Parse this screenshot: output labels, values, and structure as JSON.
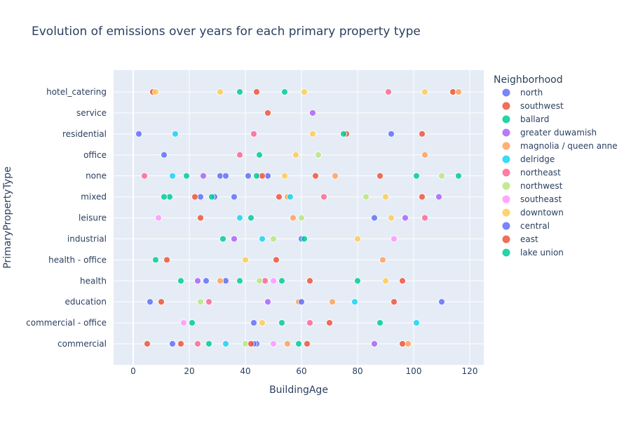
{
  "chart_data": {
    "type": "scatter",
    "title": "Evolution of emissions over years for each primary property type",
    "xlabel": "BuildingAge",
    "ylabel": "PrimaryPropertyType",
    "xlim": [
      -7,
      125
    ],
    "xticks": [
      0,
      20,
      40,
      60,
      80,
      100,
      120
    ],
    "categories": [
      "commercial",
      "commercial - office",
      "education",
      "health",
      "health - office",
      "industrial",
      "leisure",
      "mixed",
      "none",
      "office",
      "residential",
      "service",
      "hotel_catering"
    ],
    "grid": true,
    "legend": {
      "title": "Neighborhood",
      "placement": "right"
    },
    "series": [
      {
        "name": "north",
        "color": "#636efa",
        "points": [
          [
            14,
            "commercial"
          ],
          [
            44,
            "commercial"
          ],
          [
            6,
            "education"
          ],
          [
            33,
            "health"
          ],
          [
            31,
            "none"
          ],
          [
            48,
            "none"
          ],
          [
            11,
            "office"
          ],
          [
            2,
            "residential"
          ],
          [
            29,
            "mixed"
          ],
          [
            92,
            "residential"
          ],
          [
            60,
            "industrial"
          ],
          [
            86,
            "leisure"
          ]
        ]
      },
      {
        "name": "southwest",
        "color": "#ef553b",
        "points": [
          [
            5,
            "commercial"
          ],
          [
            17,
            "commercial"
          ],
          [
            10,
            "education"
          ],
          [
            12,
            "health - office"
          ],
          [
            63,
            "health"
          ],
          [
            52,
            "mixed"
          ],
          [
            65,
            "none"
          ],
          [
            88,
            "none"
          ],
          [
            114,
            "hotel_catering"
          ],
          [
            7,
            "hotel_catering"
          ],
          [
            70,
            "commercial - office"
          ],
          [
            103,
            "residential"
          ],
          [
            48,
            "service"
          ],
          [
            24,
            "leisure"
          ]
        ]
      },
      {
        "name": "ballard",
        "color": "#00cc96",
        "points": [
          [
            27,
            "commercial"
          ],
          [
            59,
            "commercial"
          ],
          [
            17,
            "health"
          ],
          [
            53,
            "health"
          ],
          [
            8,
            "health - office"
          ],
          [
            13,
            "mixed"
          ],
          [
            28,
            "mixed"
          ],
          [
            19,
            "none"
          ],
          [
            116,
            "none"
          ],
          [
            54,
            "hotel_catering"
          ],
          [
            21,
            "commercial - office"
          ],
          [
            88,
            "commercial - office"
          ],
          [
            45,
            "office"
          ],
          [
            32,
            "industrial"
          ]
        ]
      },
      {
        "name": "greater duwamish",
        "color": "#ab63fa",
        "points": [
          [
            23,
            "health"
          ],
          [
            64,
            "service"
          ],
          [
            25,
            "none"
          ],
          [
            36,
            "industrial"
          ],
          [
            97,
            "leisure"
          ],
          [
            109,
            "mixed"
          ],
          [
            48,
            "education"
          ],
          [
            86,
            "commercial"
          ]
        ]
      },
      {
        "name": "magnolia / queen anne",
        "color": "#ffa15a",
        "points": [
          [
            55,
            "commercial"
          ],
          [
            71,
            "education"
          ],
          [
            31,
            "health"
          ],
          [
            89,
            "health - office"
          ],
          [
            98,
            "commercial"
          ],
          [
            116,
            "hotel_catering"
          ],
          [
            55,
            "mixed"
          ],
          [
            72,
            "none"
          ],
          [
            104,
            "office"
          ],
          [
            57,
            "leisure"
          ],
          [
            59,
            "education"
          ]
        ]
      },
      {
        "name": "delridge",
        "color": "#19d3f3",
        "points": [
          [
            33,
            "commercial"
          ],
          [
            14,
            "none"
          ],
          [
            46,
            "industrial"
          ],
          [
            38,
            "leisure"
          ],
          [
            101,
            "commercial - office"
          ],
          [
            79,
            "education"
          ],
          [
            56,
            "mixed"
          ],
          [
            15,
            "residential"
          ]
        ]
      },
      {
        "name": "northeast",
        "color": "#ff6692",
        "points": [
          [
            23,
            "commercial"
          ],
          [
            27,
            "education"
          ],
          [
            47,
            "health"
          ],
          [
            63,
            "commercial - office"
          ],
          [
            38,
            "office"
          ],
          [
            68,
            "mixed"
          ],
          [
            4,
            "none"
          ],
          [
            91,
            "hotel_catering"
          ],
          [
            43,
            "residential"
          ],
          [
            104,
            "leisure"
          ]
        ]
      },
      {
        "name": "northwest",
        "color": "#b6e880",
        "points": [
          [
            40,
            "commercial"
          ],
          [
            45,
            "health"
          ],
          [
            83,
            "mixed"
          ],
          [
            60,
            "leisure"
          ],
          [
            66,
            "office"
          ],
          [
            50,
            "industrial"
          ],
          [
            24,
            "education"
          ],
          [
            110,
            "none"
          ]
        ]
      },
      {
        "name": "southeast",
        "color": "#ff97ff",
        "points": [
          [
            50,
            "commercial"
          ],
          [
            50,
            "health"
          ],
          [
            45,
            "none"
          ],
          [
            18,
            "commercial - office"
          ],
          [
            93,
            "industrial"
          ],
          [
            9,
            "leisure"
          ]
        ]
      },
      {
        "name": "downtown",
        "color": "#fecb52",
        "points": [
          [
            90,
            "health"
          ],
          [
            104,
            "hotel_catering"
          ],
          [
            8,
            "hotel_catering"
          ],
          [
            61,
            "hotel_catering"
          ],
          [
            31,
            "hotel_catering"
          ],
          [
            90,
            "mixed"
          ],
          [
            54,
            "none"
          ],
          [
            58,
            "office"
          ],
          [
            64,
            "residential"
          ],
          [
            40,
            "health - office"
          ],
          [
            92,
            "leisure"
          ],
          [
            46,
            "commercial - office"
          ],
          [
            80,
            "industrial"
          ]
        ]
      },
      {
        "name": "central",
        "color": "#636efa",
        "points": [
          [
            41,
            "none"
          ],
          [
            33,
            "none"
          ],
          [
            26,
            "health"
          ],
          [
            24,
            "mixed"
          ],
          [
            36,
            "mixed"
          ],
          [
            43,
            "commercial - office"
          ],
          [
            60,
            "education"
          ],
          [
            43,
            "commercial"
          ],
          [
            110,
            "education"
          ]
        ]
      },
      {
        "name": "east",
        "color": "#ef553b",
        "points": [
          [
            96,
            "health"
          ],
          [
            62,
            "commercial"
          ],
          [
            42,
            "commercial"
          ],
          [
            93,
            "education"
          ],
          [
            51,
            "health - office"
          ],
          [
            46,
            "none"
          ],
          [
            22,
            "mixed"
          ],
          [
            96,
            "commercial"
          ],
          [
            103,
            "mixed"
          ],
          [
            44,
            "hotel_catering"
          ],
          [
            76,
            "residential"
          ]
        ]
      },
      {
        "name": "lake union",
        "color": "#00cc96",
        "points": [
          [
            44,
            "none"
          ],
          [
            38,
            "hotel_catering"
          ],
          [
            101,
            "none"
          ],
          [
            80,
            "health"
          ],
          [
            11,
            "mixed"
          ],
          [
            42,
            "leisure"
          ],
          [
            61,
            "industrial"
          ],
          [
            38,
            "health"
          ],
          [
            75,
            "residential"
          ],
          [
            53,
            "commercial - office"
          ]
        ]
      }
    ]
  }
}
